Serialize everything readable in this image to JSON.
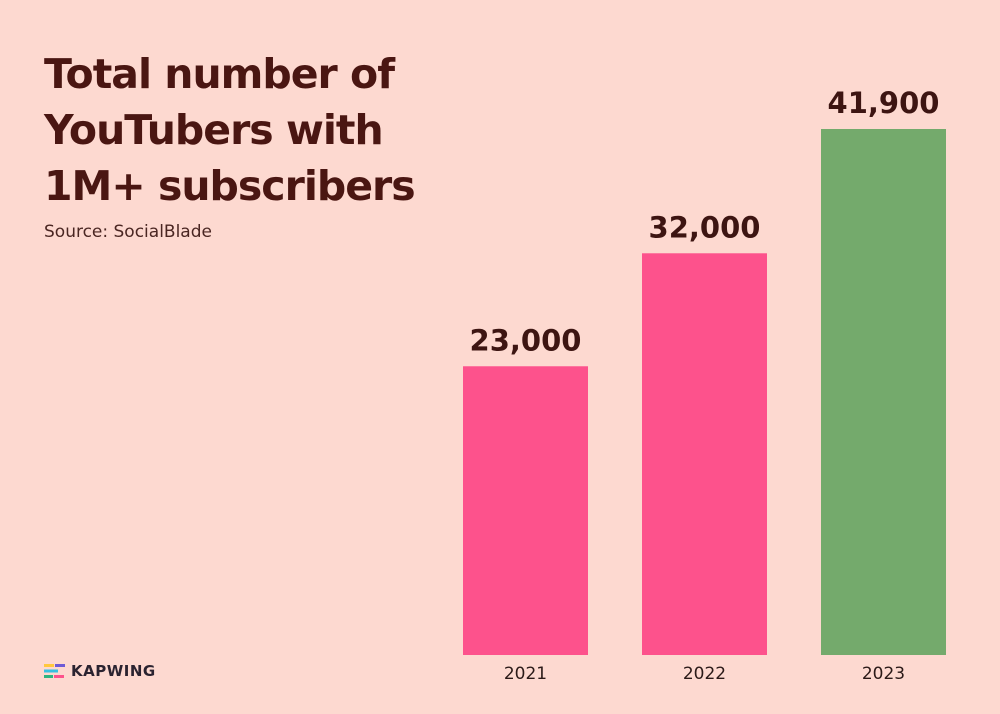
{
  "title_lines": [
    "Total number of",
    "YouTubers with",
    "1M+ subscribers"
  ],
  "source": "Source: SocialBlade",
  "logo": {
    "text": "KAPWING",
    "icon": "kapwing-logo-icon"
  },
  "colors": {
    "background": "#fdd9d0",
    "title": "#4a1612",
    "bar_default": "#fd528c",
    "bar_highlight": "#74aa6c"
  },
  "chart_data": {
    "type": "bar",
    "title": "Total number of YouTubers with 1M+ subscribers",
    "xlabel": "",
    "ylabel": "",
    "categories": [
      "2021",
      "2022",
      "2023"
    ],
    "values": [
      23000,
      32000,
      41900
    ],
    "value_labels": [
      "23,000",
      "32,000",
      "41,900"
    ],
    "bar_colors": [
      "#fd528c",
      "#fd528c",
      "#74aa6c"
    ],
    "ylim": [
      0,
      41900
    ],
    "grid": false,
    "legend": "none"
  }
}
